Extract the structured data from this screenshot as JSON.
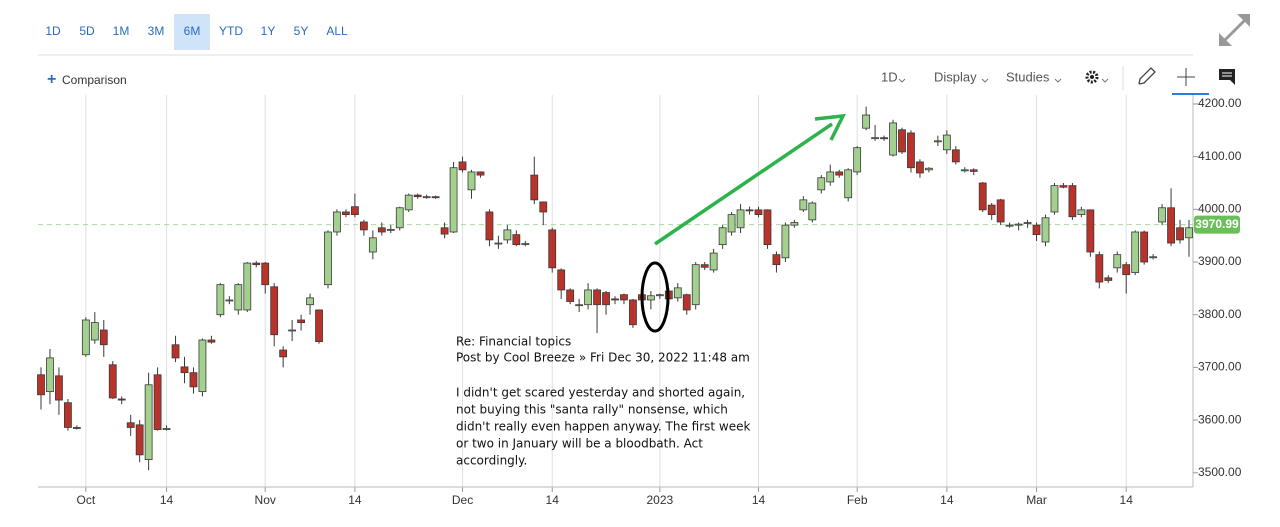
{
  "toolbar": {
    "ranges": [
      "1D",
      "5D",
      "1M",
      "3M",
      "6M",
      "YTD",
      "1Y",
      "5Y",
      "ALL"
    ],
    "active_range": 4,
    "comparison": "Comparison",
    "interval": "1D",
    "display": "Display",
    "studies": "Studies"
  },
  "chart_data": {
    "type": "candlestick",
    "categories": [
      null,
      null,
      null,
      null,
      null,
      "Oct",
      null,
      null,
      null,
      null,
      null,
      null,
      null,
      null,
      "14",
      null,
      null,
      null,
      null,
      null,
      null,
      null,
      null,
      null,
      null,
      "Nov",
      null,
      null,
      null,
      null,
      null,
      null,
      null,
      null,
      null,
      "14",
      null,
      null,
      null,
      null,
      null,
      null,
      null,
      null,
      null,
      null,
      null,
      "Dec",
      null,
      null,
      null,
      null,
      null,
      null,
      null,
      null,
      null,
      "14",
      null,
      null,
      null,
      null,
      null,
      null,
      null,
      null,
      null,
      null,
      null,
      "2023",
      null,
      null,
      null,
      null,
      null,
      null,
      null,
      null,
      null,
      null,
      "14",
      null,
      null,
      null,
      null,
      null,
      null,
      null,
      null,
      null,
      null,
      "Feb",
      null,
      null,
      null,
      null,
      null,
      null,
      null,
      null,
      null,
      "14",
      null,
      null,
      null,
      null,
      null,
      null,
      null,
      null,
      null,
      "Mar",
      null,
      null,
      null,
      null,
      null,
      null,
      null,
      null,
      null,
      "14",
      null,
      null,
      null,
      null,
      null,
      null,
      null
    ],
    "open": [
      3686,
      3654,
      3684,
      3633,
      3586,
      3724,
      3752,
      3771,
      3705,
      3640,
      3595,
      3591,
      3525,
      3686,
      3582,
      3743,
      3701,
      3690,
      3654,
      3752,
      3800,
      3828,
      3809,
      3809,
      3898,
      3898,
      3853,
      3733,
      3771,
      3790,
      3819,
      3809,
      3857,
      3957,
      3995,
      4005,
      3976,
      3919,
      3965,
      3960,
      3965,
      3999,
      4027,
      4024,
      4024,
      3965,
      3957,
      4090,
      4037,
      4071,
      3995,
      3936,
      3942,
      3952,
      3933,
      4065,
      4014,
      3961,
      3885,
      3847,
      3819,
      3819,
      3847,
      3842,
      3830,
      3838,
      3828,
      3838,
      3828,
      3836,
      3845,
      3832,
      3838,
      3819,
      3895,
      3885,
      3933,
      3957,
      3965,
      3999,
      3999,
      3999,
      3914,
      3908,
      3970,
      3999,
      3980,
      4037,
      4052,
      4071,
      4022,
      4071,
      4154,
      4136,
      4136,
      4103,
      4151,
      4145,
      4090,
      4075,
      4130,
      4113,
      4113,
      4075,
      4075,
      4050,
      4008,
      4018,
      3970,
      3970,
      3975,
      3970,
      3938,
      3995,
      4045,
      4045,
      3990,
      3999,
      3914,
      3870,
      3889,
      3895,
      3880,
      3957,
      3910,
      3976,
      4003,
      3965,
      3946
    ],
    "high": [
      3700,
      3735,
      3700,
      3640,
      3590,
      3795,
      3805,
      3790,
      3712,
      3645,
      3610,
      3600,
      3690,
      3700,
      3590,
      3760,
      3720,
      3700,
      3755,
      3760,
      3860,
      3835,
      3860,
      3900,
      3902,
      3900,
      3860,
      3740,
      3790,
      3800,
      3840,
      3810,
      3960,
      4000,
      4000,
      4030,
      3980,
      3960,
      3975,
      3970,
      4005,
      4030,
      4030,
      4028,
      4026,
      3975,
      4090,
      4100,
      4075,
      4072,
      4000,
      3950,
      3970,
      3960,
      3940,
      4100,
      4015,
      3965,
      3888,
      3850,
      3830,
      3860,
      3850,
      3845,
      3835,
      3840,
      3830,
      3840,
      3845,
      3840,
      3850,
      3860,
      3840,
      3900,
      3900,
      3925,
      3970,
      3995,
      4010,
      4005,
      4005,
      4000,
      3920,
      3975,
      3980,
      4025,
      4015,
      4065,
      4085,
      4075,
      4078,
      4120,
      4195,
      4160,
      4140,
      4170,
      4155,
      4150,
      4095,
      4080,
      4140,
      4150,
      4120,
      4080,
      4078,
      4052,
      4012,
      4020,
      3975,
      3975,
      3980,
      3975,
      3990,
      4050,
      4050,
      4050,
      4005,
      4000,
      3920,
      3875,
      3920,
      3900,
      3960,
      3960,
      3915,
      4010,
      4040,
      3980,
      3980
    ],
    "low": [
      3620,
      3630,
      3610,
      3580,
      3582,
      3720,
      3745,
      3720,
      3640,
      3630,
      3570,
      3520,
      3505,
      3580,
      3580,
      3710,
      3670,
      3650,
      3645,
      3745,
      3795,
      3820,
      3800,
      3805,
      3890,
      3840,
      3740,
      3700,
      3750,
      3770,
      3800,
      3745,
      3850,
      3950,
      3985,
      3985,
      3950,
      3905,
      3950,
      3955,
      3960,
      3995,
      4020,
      4020,
      4020,
      3945,
      3955,
      4070,
      4020,
      4060,
      3930,
      3925,
      3935,
      3930,
      3930,
      4010,
      3970,
      3880,
      3830,
      3820,
      3805,
      3810,
      3765,
      3800,
      3820,
      3820,
      3775,
      3825,
      3810,
      3830,
      3820,
      3825,
      3800,
      3810,
      3885,
      3880,
      3925,
      3950,
      3955,
      3990,
      3985,
      3925,
      3880,
      3900,
      3965,
      3995,
      3975,
      4030,
      4045,
      4060,
      4015,
      4065,
      4150,
      4130,
      4130,
      4100,
      4105,
      4070,
      4060,
      4070,
      4120,
      4105,
      4085,
      4070,
      4065,
      3995,
      3980,
      3970,
      3965,
      3960,
      3965,
      3940,
      3930,
      3990,
      4040,
      3980,
      3985,
      3910,
      3850,
      3860,
      3880,
      3840,
      3875,
      3895,
      3905,
      3970,
      3930,
      3935,
      3910
    ],
    "close": [
      3648,
      3718,
      3638,
      3586,
      3585,
      3790,
      3785,
      3743,
      3642,
      3638,
      3586,
      3534,
      3667,
      3582,
      3584,
      3718,
      3690,
      3663,
      3752,
      3748,
      3857,
      3828,
      3857,
      3898,
      3895,
      3857,
      3762,
      3720,
      3771,
      3785,
      3832,
      3749,
      3957,
      3995,
      3990,
      3990,
      3961,
      3946,
      3957,
      3962,
      4003,
      4027,
      4024,
      4024,
      4022,
      3953,
      4079,
      4075,
      4071,
      4065,
      3942,
      3936,
      3961,
      3933,
      3935,
      4018,
      3995,
      3889,
      3847,
      3825,
      3819,
      3847,
      3819,
      3819,
      3828,
      3828,
      3781,
      3828,
      3836,
      3838,
      3830,
      3851,
      3809,
      3895,
      3890,
      3917,
      3965,
      3990,
      3999,
      3998,
      3990,
      3933,
      3895,
      3970,
      3975,
      4018,
      4012,
      4060,
      4071,
      4065,
      4075,
      4117,
      4179,
      4136,
      4134,
      4164,
      4109,
      4079,
      4069,
      4078,
      4130,
      4141,
      4090,
      4075,
      4072,
      3999,
      3990,
      3976,
      3970,
      3972,
      3975,
      3952,
      3984,
      4045,
      4042,
      3986,
      3999,
      3919,
      3862,
      3865,
      3914,
      3876,
      3957,
      3900,
      3910,
      4003,
      3936,
      3942,
      3965
    ],
    "up_color": "#a3d08e",
    "down_color": "#b8332a",
    "outline_color": "#3a3a3a",
    "ylim": [
      3473,
      4217
    ],
    "yticks": [
      {
        "value": 3500,
        "label": "3500.00"
      },
      {
        "value": 3600,
        "label": "3600.00"
      },
      {
        "value": 3700,
        "label": "3700.00"
      },
      {
        "value": 3800,
        "label": "3800.00"
      },
      {
        "value": 3900,
        "label": "3900.00"
      },
      {
        "value": 4000,
        "label": "4000.00"
      },
      {
        "value": 4100,
        "label": "4100.00"
      },
      {
        "value": 4200,
        "label": "4200.00"
      }
    ],
    "grid": "x",
    "last_price": 3970.99,
    "last_price_color": "#6bbf5a",
    "annotation": [
      "Re: Financial topics",
      "Post by Cool Breeze » Fri Dec 30, 2022 11:48 am",
      "I didn't get scared yesterday and shorted again,",
      "not buying this \"santa rally\" nonsense, which",
      "didn't really even happen anyway. The first week",
      "or two in January will be a bloodbath. Act",
      "accordingly."
    ]
  }
}
